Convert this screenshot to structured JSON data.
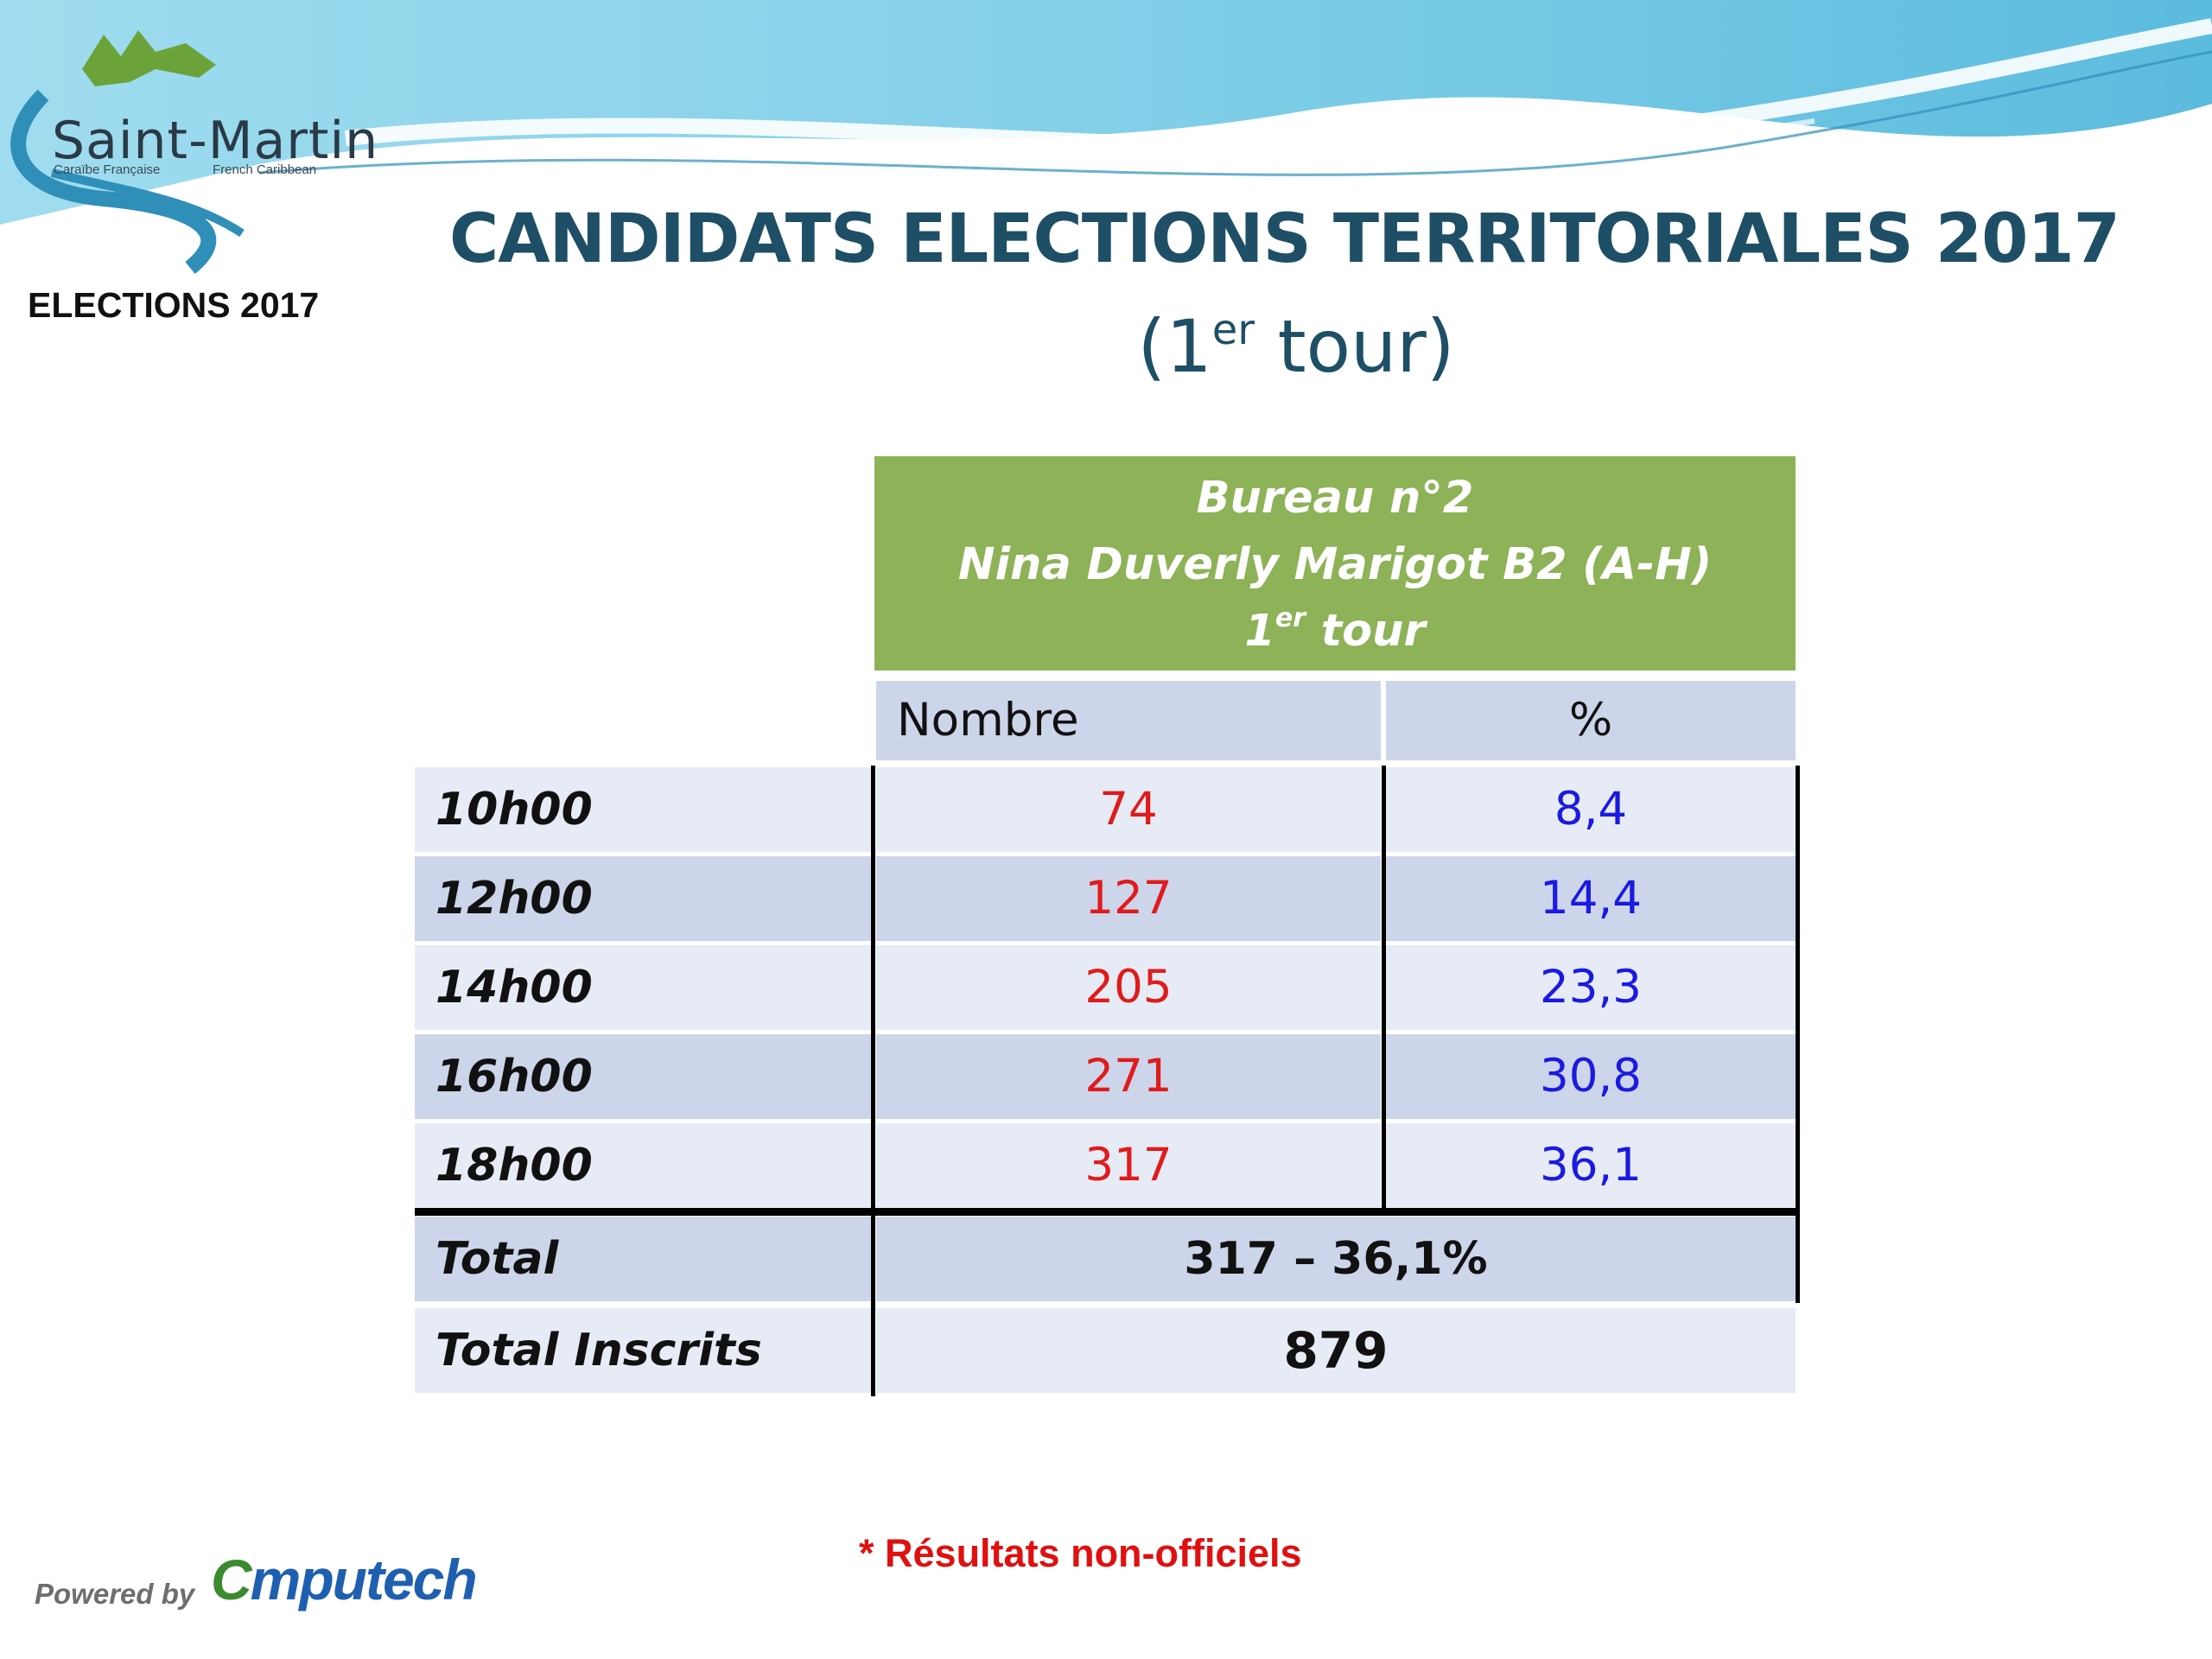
{
  "logo": {
    "name": "Saint-Martin",
    "sub_left": "Caraïbe Française",
    "sub_right": "French Caribbean",
    "elections_label": "ELECTIONS 2017"
  },
  "title": {
    "main": "CANDIDATS ELECTIONS TERRITORIALES 2017",
    "sub_prefix": "(1",
    "sub_sup": "er",
    "sub_suffix": " tour)"
  },
  "table": {
    "header_line1": "Bureau n°2",
    "header_line2": "Nina Duverly Marigot B2 (A-H)",
    "header_line3_prefix": "1",
    "header_line3_sup": "er",
    "header_line3_suffix": " tour",
    "col_nombre": "Nombre",
    "col_pct": "%",
    "rows": [
      {
        "time": "10h00",
        "nombre": "74",
        "pct": "8,4"
      },
      {
        "time": "12h00",
        "nombre": "127",
        "pct": "14,4"
      },
      {
        "time": "14h00",
        "nombre": "205",
        "pct": "23,3"
      },
      {
        "time": "16h00",
        "nombre": "271",
        "pct": "30,8"
      },
      {
        "time": "18h00",
        "nombre": "317",
        "pct": "36,1"
      }
    ],
    "total_label": "Total",
    "total_value": "317 – 36,1%",
    "inscrits_label": "Total Inscrits",
    "inscrits_value": "879"
  },
  "footer": {
    "footnote": "* Résultats non-officiels",
    "powered_by": "Powered by",
    "brand_c": "C",
    "brand_rest": "mputech"
  },
  "colors": {
    "title": "#1e4f66",
    "header_green": "#8db257",
    "nombre_red": "#e01b1b",
    "pct_blue": "#1a1ae0",
    "footnote_red": "#e01010"
  }
}
